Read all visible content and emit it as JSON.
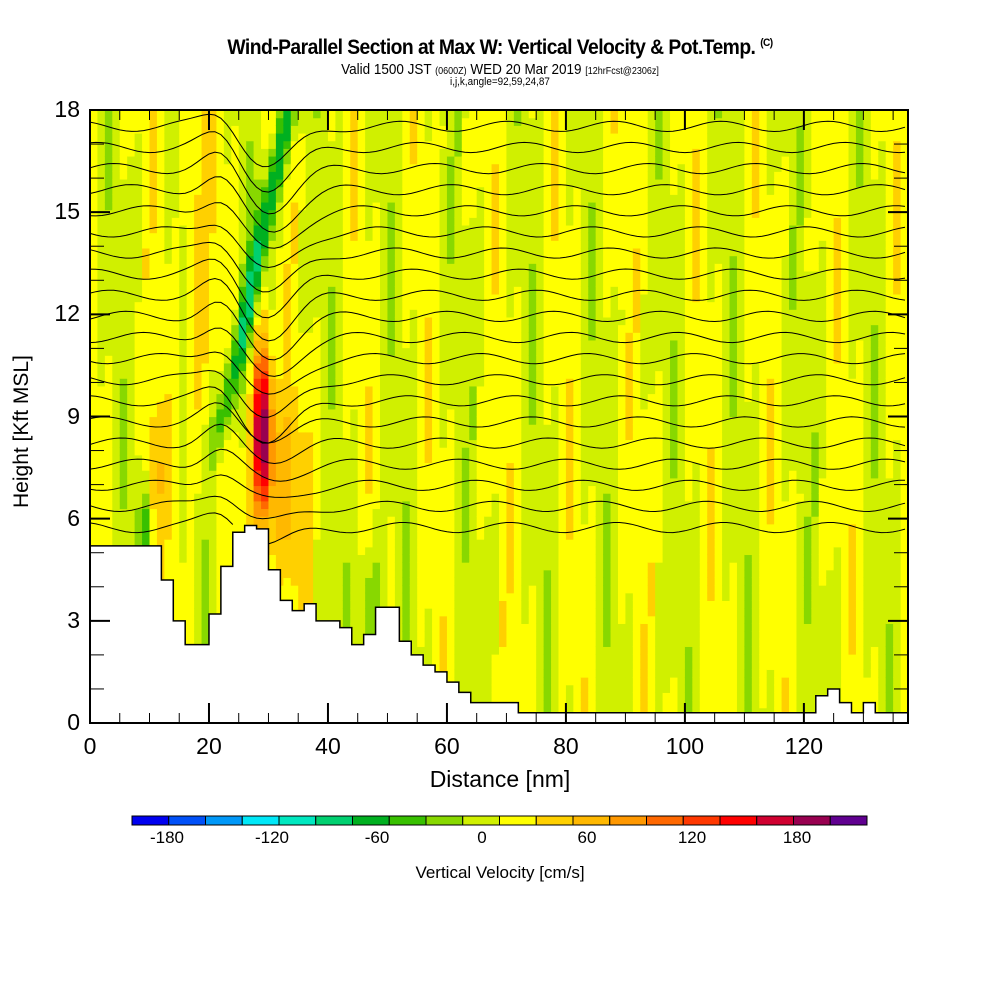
{
  "header": {
    "title": "Wind-Parallel Section at Max W: Vertical Velocity & Pot.Temp.",
    "copyright": "(C)",
    "valid_prefix": "Valid 1500 JST",
    "valid_utc": "(0600Z)",
    "valid_date": "WED 20 Mar 2019",
    "forecast": "[12hrFcst@2306z]",
    "indices": "i,j,k,angle=92,59,24,87"
  },
  "chart_data": {
    "type": "heatmap",
    "title": "Wind-Parallel Section at Max W: Vertical Velocity & Pot.Temp.",
    "xlabel": "Distance [nm]",
    "ylabel": "Height [Kft MSL]",
    "xlim": [
      0,
      137.5
    ],
    "ylim": [
      0,
      18
    ],
    "x_ticks": [
      0,
      20,
      40,
      60,
      80,
      100,
      120
    ],
    "x_tick_labels": [
      "0",
      "20",
      "40",
      "60",
      "80",
      "100",
      "120"
    ],
    "x_minor_step": 5,
    "y_ticks": [
      0,
      3,
      6,
      9,
      12,
      15,
      18
    ],
    "y_tick_labels": [
      "0",
      "3",
      "6",
      "9",
      "12",
      "15",
      "18"
    ],
    "y_minor_step": 1,
    "fill_variable": "Vertical Velocity",
    "contour_variable": "Potential Temperature",
    "colorbar": {
      "label": "Vertical Velocity [cm/s]",
      "min": -200,
      "max": 220,
      "step": 20,
      "tick_values": [
        -180,
        -120,
        -60,
        0,
        60,
        120,
        180
      ],
      "tick_labels": [
        "-180",
        "-120",
        "-60",
        "0",
        "60",
        "120",
        "180"
      ],
      "colors": [
        "#0000f0",
        "#0050f8",
        "#0098f8",
        "#00e8f8",
        "#00e8c0",
        "#00d070",
        "#00b020",
        "#38c000",
        "#88d800",
        "#d0f000",
        "#ffff00",
        "#ffd000",
        "#ffb800",
        "#ff9800",
        "#ff6800",
        "#ff3800",
        "#ff0000",
        "#d00030",
        "#980050",
        "#600090"
      ]
    },
    "terrain_profile": {
      "x_nm": [
        0,
        10,
        12,
        14,
        16,
        18,
        20,
        22,
        24,
        26,
        28,
        30,
        32,
        34,
        36,
        38,
        40,
        42,
        44,
        46,
        48,
        50,
        52,
        54,
        56,
        58,
        60,
        62,
        64,
        66,
        68,
        70,
        72,
        80,
        100,
        120,
        122,
        124,
        126,
        128,
        130,
        132,
        134,
        137.5
      ],
      "height_kft": [
        5.2,
        5.2,
        4.2,
        3.0,
        2.3,
        2.3,
        3.2,
        4.6,
        5.6,
        5.8,
        5.7,
        4.5,
        3.6,
        3.3,
        3.5,
        3.0,
        3.0,
        2.8,
        2.3,
        2.6,
        3.4,
        3.4,
        2.4,
        2.0,
        1.7,
        1.5,
        1.2,
        0.9,
        0.6,
        0.6,
        0.6,
        0.6,
        0.3,
        0.3,
        0.3,
        0.3,
        0.8,
        1.0,
        0.6,
        0.3,
        0.6,
        0.3,
        0.3,
        0.3
      ]
    },
    "features": [
      {
        "name": "max updraft core",
        "x_nm": 29,
        "height_kft_range": [
          6,
          11
        ],
        "vertical_velocity_cm_s": 200
      },
      {
        "name": "downdraft band",
        "x_nm_range": [
          26,
          38
        ],
        "height_kft_range": [
          11,
          18
        ],
        "vertical_velocity_cm_s": -80
      }
    ]
  }
}
